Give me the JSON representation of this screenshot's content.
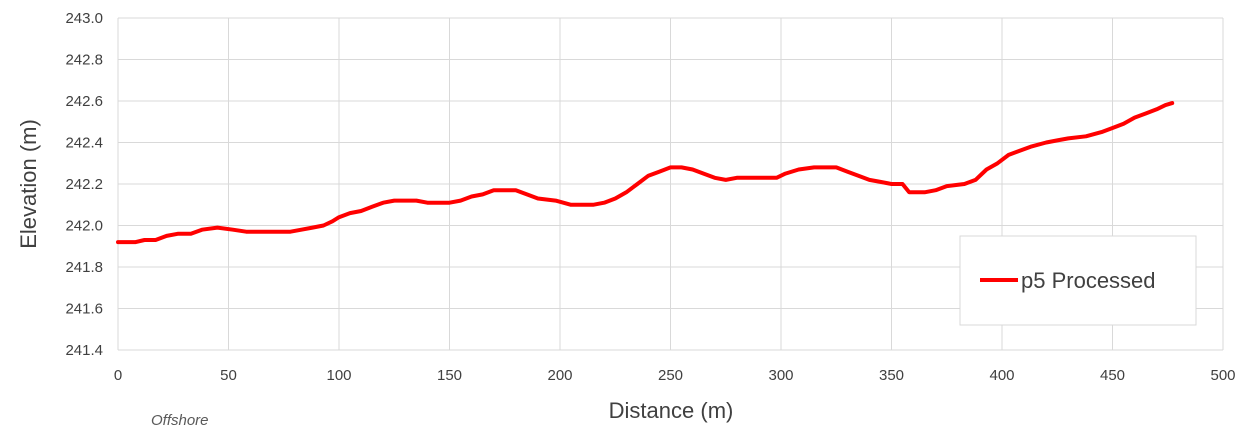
{
  "chart_data": {
    "type": "line",
    "title": "",
    "xlabel": "Distance (m)",
    "ylabel": "Elevation (m)",
    "xlim": [
      0,
      500
    ],
    "ylim": [
      241.4,
      243.0
    ],
    "xticks": [
      0,
      50,
      100,
      150,
      200,
      250,
      300,
      350,
      400,
      450,
      500
    ],
    "yticks": [
      241.4,
      241.6,
      241.8,
      242.0,
      242.2,
      242.4,
      242.6,
      242.8,
      243.0
    ],
    "ytick_labels": [
      "241.4",
      "241.6",
      "241.8",
      "242.0",
      "242.2",
      "242.4",
      "242.6",
      "242.8",
      "243.0"
    ],
    "grid": true,
    "legend_position": "bottom-right",
    "annotation": "Offshore",
    "series": [
      {
        "name": "p5 Processed",
        "color": "#ff0000",
        "points": [
          [
            0,
            241.92
          ],
          [
            8,
            241.92
          ],
          [
            12,
            241.93
          ],
          [
            17,
            241.93
          ],
          [
            22,
            241.95
          ],
          [
            27,
            241.96
          ],
          [
            33,
            241.96
          ],
          [
            38,
            241.98
          ],
          [
            45,
            241.99
          ],
          [
            52,
            241.98
          ],
          [
            58,
            241.97
          ],
          [
            68,
            241.97
          ],
          [
            78,
            241.97
          ],
          [
            83,
            241.98
          ],
          [
            88,
            241.99
          ],
          [
            93,
            242.0
          ],
          [
            97,
            242.02
          ],
          [
            100,
            242.04
          ],
          [
            105,
            242.06
          ],
          [
            110,
            242.07
          ],
          [
            115,
            242.09
          ],
          [
            120,
            242.11
          ],
          [
            125,
            242.12
          ],
          [
            135,
            242.12
          ],
          [
            140,
            242.11
          ],
          [
            150,
            242.11
          ],
          [
            155,
            242.12
          ],
          [
            160,
            242.14
          ],
          [
            165,
            242.15
          ],
          [
            170,
            242.17
          ],
          [
            180,
            242.17
          ],
          [
            185,
            242.15
          ],
          [
            190,
            242.13
          ],
          [
            198,
            242.12
          ],
          [
            205,
            242.1
          ],
          [
            215,
            242.1
          ],
          [
            220,
            242.11
          ],
          [
            225,
            242.13
          ],
          [
            230,
            242.16
          ],
          [
            235,
            242.2
          ],
          [
            240,
            242.24
          ],
          [
            245,
            242.26
          ],
          [
            250,
            242.28
          ],
          [
            255,
            242.28
          ],
          [
            260,
            242.27
          ],
          [
            265,
            242.25
          ],
          [
            270,
            242.23
          ],
          [
            275,
            242.22
          ],
          [
            280,
            242.23
          ],
          [
            290,
            242.23
          ],
          [
            298,
            242.23
          ],
          [
            302,
            242.25
          ],
          [
            308,
            242.27
          ],
          [
            315,
            242.28
          ],
          [
            325,
            242.28
          ],
          [
            330,
            242.26
          ],
          [
            335,
            242.24
          ],
          [
            340,
            242.22
          ],
          [
            345,
            242.21
          ],
          [
            350,
            242.2
          ],
          [
            355,
            242.2
          ],
          [
            358,
            242.16
          ],
          [
            365,
            242.16
          ],
          [
            370,
            242.17
          ],
          [
            375,
            242.19
          ],
          [
            383,
            242.2
          ],
          [
            388,
            242.22
          ],
          [
            393,
            242.27
          ],
          [
            398,
            242.3
          ],
          [
            403,
            242.34
          ],
          [
            408,
            242.36
          ],
          [
            413,
            242.38
          ],
          [
            420,
            242.4
          ],
          [
            425,
            242.41
          ],
          [
            430,
            242.42
          ],
          [
            438,
            242.43
          ],
          [
            445,
            242.45
          ],
          [
            450,
            242.47
          ],
          [
            455,
            242.49
          ],
          [
            460,
            242.52
          ],
          [
            465,
            242.54
          ],
          [
            470,
            242.56
          ],
          [
            474,
            242.58
          ],
          [
            477,
            242.59
          ]
        ]
      }
    ]
  }
}
